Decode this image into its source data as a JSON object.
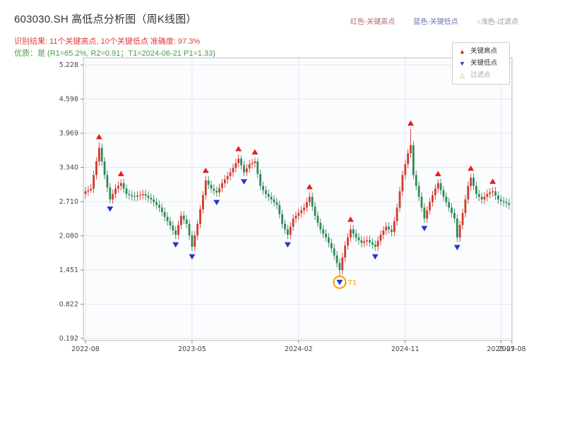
{
  "header": {
    "title": "603030.SH 高低点分析图（周K线图）",
    "top_legend": [
      {
        "label": "红色-关键高点",
        "color": "#b06a6a"
      },
      {
        "label": "蓝色-关键低点",
        "color": "#6a75b0"
      },
      {
        "label": "○浅色-过滤点",
        "color": "#999999"
      }
    ],
    "result_line": "识别结果: 11个关键高点, 10个关键低点  准确度: 97.3%",
    "result_color": "#e53935",
    "quality_line": "优质：是 (R1=65.2%, R2=0.91；T1=2024-06-21 P1=1.33)",
    "quality_color": "#43a047"
  },
  "stats": {
    "key_high_count": 11,
    "key_low_count": 10,
    "accuracy": "97.3%",
    "premium": "是",
    "r1": "65.2%",
    "r2": "0.91",
    "t1_date": "2024-06-21",
    "p1": "1.33"
  },
  "legend_box": {
    "items": [
      {
        "label": "关键高点",
        "marker": "triangle-up",
        "color": "#e01f1f"
      },
      {
        "label": "关键低点",
        "marker": "triangle-down",
        "color": "#2436c7"
      },
      {
        "label": "过滤点",
        "marker": "triangle-up-hollow",
        "color": "#aaaaaa"
      }
    ]
  },
  "chart_data": {
    "type": "candlestick",
    "title": "603030.SH 高低点分析图（周K线图）",
    "frequency": "weekly",
    "ylim": [
      0.153,
      5.358
    ],
    "grid": true,
    "y_ticks": [
      {
        "label": "5.228",
        "value": 5.228
      },
      {
        "label": "4.598",
        "value": 4.598
      },
      {
        "label": "3.969",
        "value": 3.969
      },
      {
        "label": "3.340",
        "value": 3.34
      },
      {
        "label": "2.710",
        "value": 2.71
      },
      {
        "label": "2.080",
        "value": 2.08
      },
      {
        "label": "1.451",
        "value": 1.451
      },
      {
        "label": "0.822",
        "value": 0.822
      },
      {
        "label": "0.192",
        "value": 0.192
      }
    ],
    "x_ticks": [
      {
        "label": "2022-08",
        "week": 0
      },
      {
        "label": "2023-05",
        "week": 39
      },
      {
        "label": "2024-02",
        "week": 78
      },
      {
        "label": "2024-11",
        "week": 117
      },
      {
        "label": "2025-07",
        "week": 152
      },
      {
        "label": "2025-08",
        "week": 156
      }
    ],
    "colors": {
      "up": "#d4382c",
      "down": "#2e8b57",
      "grid": "#e4e7ef",
      "axis": "#bbbbbb",
      "tick": "#888888",
      "tick_label": "#444444",
      "plot_bg": "#fbfcfe",
      "marker_high": "#e01f1f",
      "marker_low": "#2436c7",
      "t1": "#ff9800"
    },
    "candles": [
      [
        2.85,
        2.98,
        2.77,
        2.9
      ],
      [
        2.9,
        3.0,
        2.82,
        2.92
      ],
      [
        2.92,
        3.03,
        2.87,
        2.95
      ],
      [
        2.95,
        3.28,
        2.87,
        3.2
      ],
      [
        3.2,
        3.53,
        3.12,
        3.45
      ],
      [
        3.45,
        3.8,
        3.37,
        3.7
      ],
      [
        3.7,
        3.78,
        3.37,
        3.45
      ],
      [
        3.45,
        3.53,
        3.12,
        3.2
      ],
      [
        3.2,
        3.28,
        2.89,
        2.97
      ],
      [
        2.97,
        3.05,
        2.68,
        2.75
      ],
      [
        2.75,
        2.93,
        2.67,
        2.85
      ],
      [
        2.85,
        3.03,
        2.77,
        2.95
      ],
      [
        2.95,
        3.08,
        2.87,
        3.0
      ],
      [
        3.0,
        3.12,
        2.92,
        3.05
      ],
      [
        3.05,
        3.13,
        2.87,
        2.95
      ],
      [
        2.95,
        3.03,
        2.77,
        2.85
      ],
      [
        2.85,
        2.93,
        2.75,
        2.83
      ],
      [
        2.83,
        2.91,
        2.73,
        2.81
      ],
      [
        2.81,
        2.89,
        2.72,
        2.8
      ],
      [
        2.8,
        2.9,
        2.72,
        2.82
      ],
      [
        2.82,
        2.91,
        2.74,
        2.83
      ],
      [
        2.83,
        2.93,
        2.75,
        2.85
      ],
      [
        2.85,
        2.93,
        2.74,
        2.82
      ],
      [
        2.82,
        2.9,
        2.7,
        2.78
      ],
      [
        2.78,
        2.86,
        2.67,
        2.75
      ],
      [
        2.75,
        2.83,
        2.62,
        2.7
      ],
      [
        2.7,
        2.78,
        2.57,
        2.65
      ],
      [
        2.65,
        2.73,
        2.52,
        2.6
      ],
      [
        2.6,
        2.68,
        2.44,
        2.52
      ],
      [
        2.52,
        2.6,
        2.35,
        2.43
      ],
      [
        2.43,
        2.51,
        2.27,
        2.35
      ],
      [
        2.35,
        2.43,
        2.19,
        2.27
      ],
      [
        2.27,
        2.35,
        2.1,
        2.18
      ],
      [
        2.18,
        2.26,
        2.02,
        2.1
      ],
      [
        2.1,
        2.36,
        2.02,
        2.28
      ],
      [
        2.28,
        2.53,
        2.2,
        2.45
      ],
      [
        2.45,
        2.53,
        2.3,
        2.38
      ],
      [
        2.38,
        2.46,
        2.22,
        2.3
      ],
      [
        2.3,
        2.38,
        2.01,
        2.09
      ],
      [
        2.09,
        2.17,
        1.8,
        1.88
      ],
      [
        1.88,
        2.17,
        1.8,
        2.09
      ],
      [
        2.09,
        2.38,
        2.01,
        2.3
      ],
      [
        2.3,
        2.65,
        2.22,
        2.57
      ],
      [
        2.57,
        2.91,
        2.49,
        2.83
      ],
      [
        2.83,
        3.18,
        2.75,
        3.1
      ],
      [
        3.1,
        3.18,
        2.94,
        3.02
      ],
      [
        3.02,
        3.1,
        2.87,
        2.95
      ],
      [
        2.95,
        3.03,
        2.83,
        2.91
      ],
      [
        2.91,
        2.99,
        2.8,
        2.88
      ],
      [
        2.88,
        3.04,
        2.8,
        2.96
      ],
      [
        2.96,
        3.13,
        2.88,
        3.05
      ],
      [
        3.05,
        3.2,
        2.97,
        3.12
      ],
      [
        3.12,
        3.26,
        3.04,
        3.18
      ],
      [
        3.18,
        3.33,
        3.1,
        3.25
      ],
      [
        3.25,
        3.41,
        3.17,
        3.33
      ],
      [
        3.33,
        3.5,
        3.25,
        3.42
      ],
      [
        3.42,
        3.58,
        3.34,
        3.5
      ],
      [
        3.5,
        3.56,
        3.3,
        3.38
      ],
      [
        3.38,
        3.46,
        3.18,
        3.25
      ],
      [
        3.25,
        3.4,
        3.18,
        3.32
      ],
      [
        3.32,
        3.48,
        3.24,
        3.4
      ],
      [
        3.4,
        3.5,
        3.32,
        3.42
      ],
      [
        3.42,
        3.52,
        3.34,
        3.45
      ],
      [
        3.45,
        3.51,
        3.14,
        3.22
      ],
      [
        3.22,
        3.3,
        2.92,
        3.0
      ],
      [
        3.0,
        3.08,
        2.84,
        2.92
      ],
      [
        2.92,
        3.0,
        2.77,
        2.85
      ],
      [
        2.85,
        2.93,
        2.72,
        2.8
      ],
      [
        2.8,
        2.88,
        2.67,
        2.75
      ],
      [
        2.75,
        2.83,
        2.62,
        2.7
      ],
      [
        2.7,
        2.78,
        2.57,
        2.65
      ],
      [
        2.65,
        2.73,
        2.4,
        2.48
      ],
      [
        2.48,
        2.56,
        2.22,
        2.3
      ],
      [
        2.3,
        2.38,
        2.12,
        2.2
      ],
      [
        2.2,
        2.28,
        2.02,
        2.1
      ],
      [
        2.1,
        2.33,
        2.02,
        2.25
      ],
      [
        2.25,
        2.48,
        2.17,
        2.4
      ],
      [
        2.4,
        2.53,
        2.32,
        2.45
      ],
      [
        2.45,
        2.58,
        2.37,
        2.5
      ],
      [
        2.5,
        2.63,
        2.42,
        2.55
      ],
      [
        2.55,
        2.68,
        2.47,
        2.6
      ],
      [
        2.6,
        2.78,
        2.52,
        2.7
      ],
      [
        2.7,
        2.88,
        2.62,
        2.8
      ],
      [
        2.8,
        2.88,
        2.54,
        2.62
      ],
      [
        2.62,
        2.7,
        2.37,
        2.45
      ],
      [
        2.45,
        2.53,
        2.24,
        2.32
      ],
      [
        2.32,
        2.4,
        2.12,
        2.2
      ],
      [
        2.2,
        2.28,
        2.04,
        2.12
      ],
      [
        2.12,
        2.2,
        1.97,
        2.05
      ],
      [
        2.05,
        2.13,
        1.87,
        1.95
      ],
      [
        1.95,
        2.03,
        1.77,
        1.85
      ],
      [
        1.85,
        1.93,
        1.64,
        1.72
      ],
      [
        1.72,
        1.8,
        1.5,
        1.58
      ],
      [
        1.58,
        1.66,
        1.33,
        1.45
      ],
      [
        1.45,
        1.76,
        1.37,
        1.68
      ],
      [
        1.68,
        1.98,
        1.6,
        1.9
      ],
      [
        1.9,
        2.13,
        1.82,
        2.05
      ],
      [
        2.05,
        2.28,
        1.97,
        2.2
      ],
      [
        2.2,
        2.28,
        2.04,
        2.12
      ],
      [
        2.12,
        2.2,
        1.97,
        2.05
      ],
      [
        2.05,
        2.13,
        1.92,
        2.0
      ],
      [
        2.0,
        2.08,
        1.87,
        1.95
      ],
      [
        1.95,
        2.06,
        1.87,
        1.98
      ],
      [
        1.98,
        2.08,
        1.9,
        2.0
      ],
      [
        2.0,
        2.08,
        1.88,
        1.96
      ],
      [
        1.96,
        2.04,
        1.84,
        1.92
      ],
      [
        1.92,
        2.0,
        1.8,
        1.88
      ],
      [
        1.88,
        2.07,
        1.8,
        1.99
      ],
      [
        1.99,
        2.18,
        1.91,
        2.1
      ],
      [
        2.1,
        2.26,
        2.02,
        2.18
      ],
      [
        2.18,
        2.33,
        2.1,
        2.25
      ],
      [
        2.25,
        2.33,
        2.12,
        2.2
      ],
      [
        2.2,
        2.28,
        2.07,
        2.15
      ],
      [
        2.15,
        2.43,
        2.07,
        2.35
      ],
      [
        2.35,
        2.68,
        2.27,
        2.6
      ],
      [
        2.6,
        2.98,
        2.52,
        2.9
      ],
      [
        2.9,
        3.28,
        2.82,
        3.2
      ],
      [
        3.2,
        3.48,
        3.12,
        3.4
      ],
      [
        3.4,
        3.68,
        3.32,
        3.6
      ],
      [
        3.6,
        4.05,
        3.52,
        3.75
      ],
      [
        3.75,
        3.83,
        3.12,
        3.2
      ],
      [
        3.2,
        3.28,
        2.92,
        3.0
      ],
      [
        3.0,
        3.08,
        2.72,
        2.8
      ],
      [
        2.8,
        2.88,
        2.52,
        2.6
      ],
      [
        2.6,
        2.68,
        2.32,
        2.4
      ],
      [
        2.4,
        2.63,
        2.32,
        2.55
      ],
      [
        2.55,
        2.78,
        2.47,
        2.7
      ],
      [
        2.7,
        2.91,
        2.62,
        2.83
      ],
      [
        2.83,
        3.03,
        2.75,
        2.95
      ],
      [
        2.95,
        3.12,
        2.87,
        3.05
      ],
      [
        3.05,
        3.13,
        2.84,
        2.92
      ],
      [
        2.92,
        3.0,
        2.72,
        2.8
      ],
      [
        2.8,
        2.88,
        2.62,
        2.7
      ],
      [
        2.7,
        2.78,
        2.52,
        2.6
      ],
      [
        2.6,
        2.68,
        2.42,
        2.5
      ],
      [
        2.5,
        2.58,
        2.32,
        2.4
      ],
      [
        2.4,
        2.48,
        1.97,
        2.05
      ],
      [
        2.05,
        2.36,
        1.97,
        2.28
      ],
      [
        2.28,
        2.58,
        2.2,
        2.5
      ],
      [
        2.5,
        2.83,
        2.42,
        2.75
      ],
      [
        2.75,
        3.08,
        2.67,
        3.0
      ],
      [
        3.0,
        3.22,
        2.92,
        3.15
      ],
      [
        3.15,
        3.23,
        2.92,
        3.0
      ],
      [
        3.0,
        3.08,
        2.77,
        2.85
      ],
      [
        2.85,
        2.93,
        2.72,
        2.8
      ],
      [
        2.8,
        2.88,
        2.67,
        2.75
      ],
      [
        2.75,
        2.88,
        2.67,
        2.8
      ],
      [
        2.8,
        2.93,
        2.72,
        2.85
      ],
      [
        2.85,
        2.96,
        2.77,
        2.88
      ],
      [
        2.88,
        2.98,
        2.8,
        2.9
      ],
      [
        2.9,
        2.98,
        2.74,
        2.82
      ],
      [
        2.82,
        2.9,
        2.67,
        2.75
      ],
      [
        2.75,
        2.83,
        2.64,
        2.72
      ],
      [
        2.72,
        2.8,
        2.62,
        2.7
      ],
      [
        2.7,
        2.78,
        2.6,
        2.68
      ],
      [
        2.68,
        2.76,
        2.57,
        2.65
      ]
    ],
    "key_highs": [
      {
        "week": 5,
        "price": 3.8
      },
      {
        "week": 13,
        "price": 3.12
      },
      {
        "week": 44,
        "price": 3.18
      },
      {
        "week": 56,
        "price": 3.58
      },
      {
        "week": 62,
        "price": 3.52
      },
      {
        "week": 82,
        "price": 2.88
      },
      {
        "week": 97,
        "price": 2.28
      },
      {
        "week": 119,
        "price": 4.05
      },
      {
        "week": 129,
        "price": 3.12
      },
      {
        "week": 141,
        "price": 3.22
      },
      {
        "week": 149,
        "price": 2.98
      }
    ],
    "key_lows": [
      {
        "week": 9,
        "price": 2.68
      },
      {
        "week": 33,
        "price": 2.02
      },
      {
        "week": 39,
        "price": 1.8
      },
      {
        "week": 48,
        "price": 2.8
      },
      {
        "week": 58,
        "price": 3.18
      },
      {
        "week": 74,
        "price": 2.02
      },
      {
        "week": 93,
        "price": 1.33
      },
      {
        "week": 106,
        "price": 1.8
      },
      {
        "week": 124,
        "price": 2.32
      },
      {
        "week": 136,
        "price": 1.97
      }
    ],
    "filtered_points": [],
    "t1": {
      "week": 93,
      "price": 1.33,
      "label": "T1"
    }
  }
}
